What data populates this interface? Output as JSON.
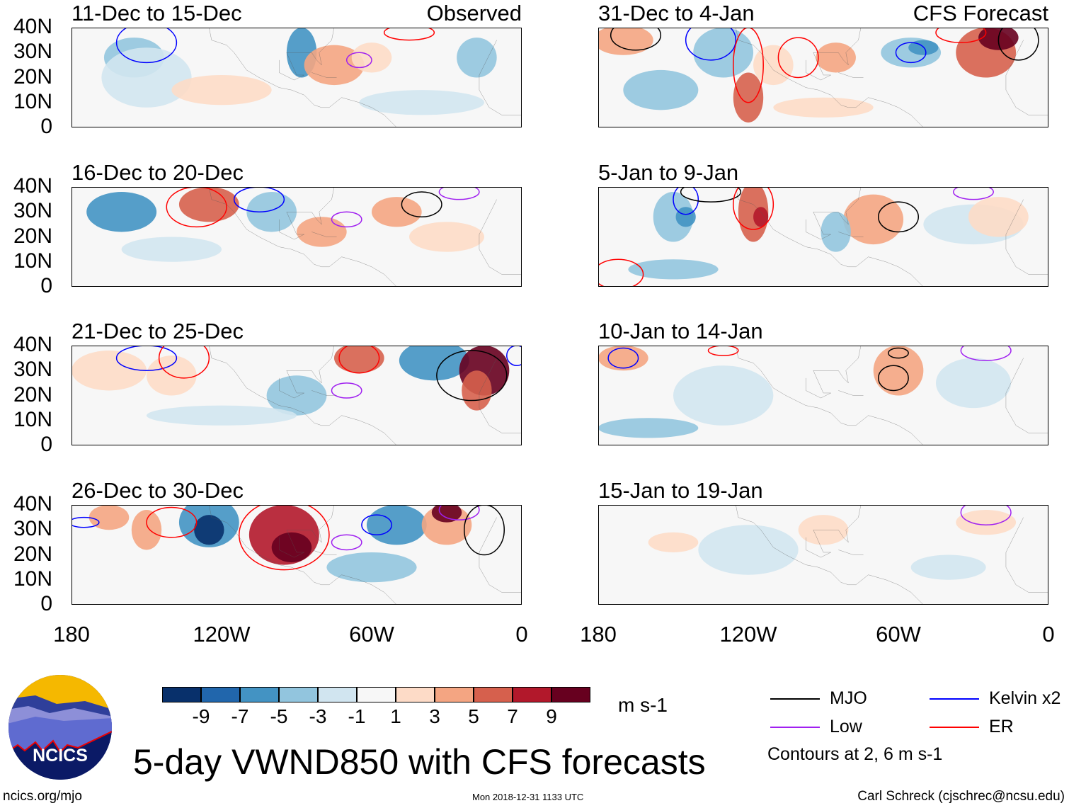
{
  "panels": {
    "left": [
      {
        "title": "11-Dec to 15-Dec",
        "tag": "Observed"
      },
      {
        "title": "16-Dec to 20-Dec",
        "tag": ""
      },
      {
        "title": "21-Dec to 25-Dec",
        "tag": ""
      },
      {
        "title": "26-Dec to 30-Dec",
        "tag": ""
      }
    ],
    "right": [
      {
        "title": "31-Dec to 4-Jan",
        "tag": "CFS Forecast"
      },
      {
        "title": "5-Jan to 9-Jan",
        "tag": ""
      },
      {
        "title": "10-Jan to 14-Jan",
        "tag": ""
      },
      {
        "title": "15-Jan to 19-Jan",
        "tag": ""
      }
    ]
  },
  "lat_labels": [
    "40N",
    "30N",
    "20N",
    "10N",
    "0"
  ],
  "lon_labels": [
    "180",
    "120W",
    "60W",
    "0"
  ],
  "colorbar": {
    "colors": [
      "#08306b",
      "#2166ac",
      "#4393c3",
      "#92c5de",
      "#d1e5f0",
      "#f7f7f7",
      "#fddbc7",
      "#f4a582",
      "#d6604d",
      "#b2182b",
      "#67001f"
    ],
    "labels": [
      "-9",
      "-7",
      "-5",
      "-3",
      "-1",
      "1",
      "3",
      "5",
      "7",
      "9"
    ],
    "units": "m s-1"
  },
  "legend": {
    "items": [
      {
        "label": "MJO",
        "color": "#000000"
      },
      {
        "label": "Kelvin x2",
        "color": "#0000ff"
      },
      {
        "label": "Low",
        "color": "#a020f0"
      },
      {
        "label": "ER",
        "color": "#ff0000"
      }
    ],
    "note": "Contours at 2, 6 m s-1"
  },
  "title": "5-day VWND850 with CFS forecasts",
  "logo_text": "NCICS",
  "footer": {
    "url": "ncics.org/mjo",
    "timestamp": "Mon 2018-12-31 1133 UTC",
    "author": "Carl Schreck (cjschrec@ncsu.edu)"
  }
}
